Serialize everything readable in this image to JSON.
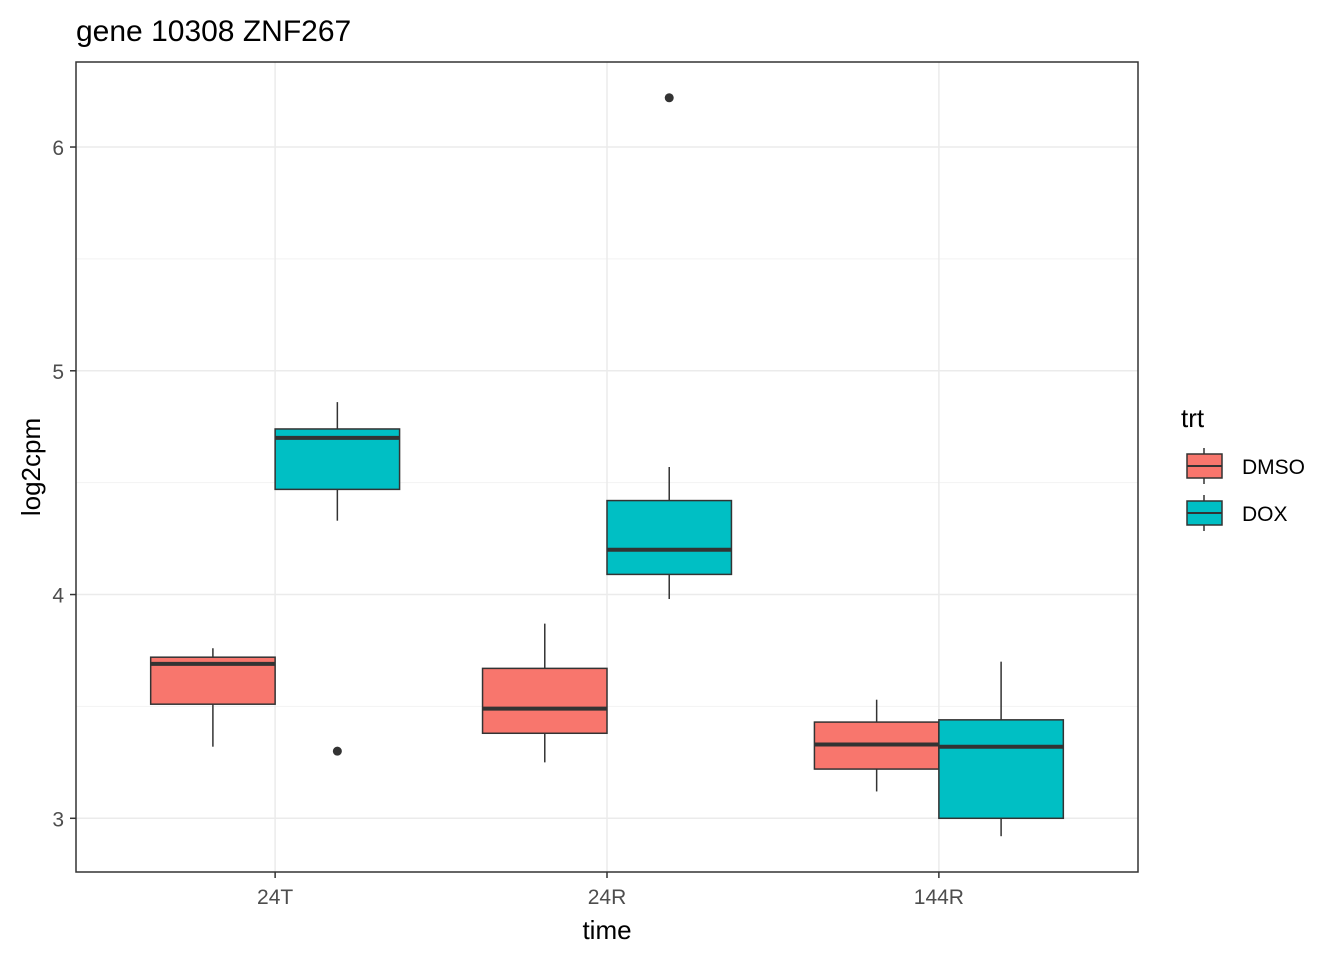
{
  "chart_data": {
    "type": "boxplot",
    "title": "gene 10308 ZNF267",
    "xlabel": "time",
    "ylabel": "log2cpm",
    "categories": [
      "24T",
      "24R",
      "144R"
    ],
    "ylim": [
      2.76,
      6.38
    ],
    "yticks": [
      3,
      4,
      5,
      6
    ],
    "grid": true,
    "legend": {
      "title": "trt",
      "placement": "right"
    },
    "series": [
      {
        "name": "DMSO",
        "color": "#F8766D",
        "boxes": [
          {
            "category": "24T",
            "min": 3.32,
            "q1": 3.51,
            "median": 3.69,
            "q3": 3.72,
            "max": 3.76,
            "outliers": []
          },
          {
            "category": "24R",
            "min": 3.25,
            "q1": 3.38,
            "median": 3.49,
            "q3": 3.67,
            "max": 3.87,
            "outliers": []
          },
          {
            "category": "144R",
            "min": 3.12,
            "q1": 3.22,
            "median": 3.33,
            "q3": 3.43,
            "max": 3.53,
            "outliers": []
          }
        ]
      },
      {
        "name": "DOX",
        "color": "#00BFC4",
        "boxes": [
          {
            "category": "24T",
            "min": 4.33,
            "q1": 4.47,
            "median": 4.7,
            "q3": 4.74,
            "max": 4.86,
            "outliers": [
              3.3
            ]
          },
          {
            "category": "24R",
            "min": 3.98,
            "q1": 4.09,
            "median": 4.2,
            "q3": 4.42,
            "max": 4.57,
            "outliers": [
              6.22
            ]
          },
          {
            "category": "144R",
            "min": 2.92,
            "q1": 3.0,
            "median": 3.32,
            "q3": 3.44,
            "max": 3.7,
            "outliers": []
          }
        ]
      }
    ]
  }
}
